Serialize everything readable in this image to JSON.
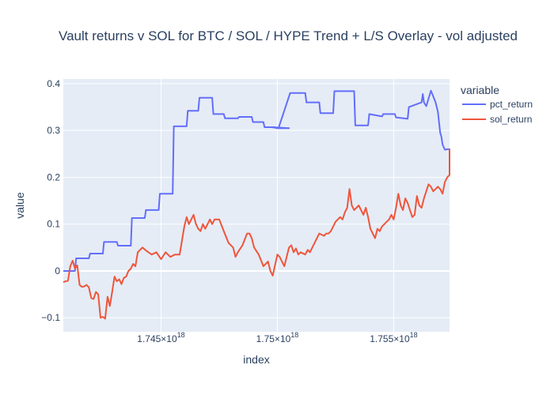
{
  "chart_data": {
    "type": "line",
    "title": "Vault returns v SOL for BTC / SOL / HYPE Trend + L/S Overlay - vol adjusted",
    "xlabel": "index",
    "ylabel": "value",
    "xlim": [
      1.7408e+18,
      1.7574e+18
    ],
    "ylim": [
      -0.13,
      0.41
    ],
    "x_ticks": [
      {
        "value": 1.745e+18,
        "base": "1.745×10",
        "exp": "18"
      },
      {
        "value": 1.75e+18,
        "base": "1.75×10",
        "exp": "18"
      },
      {
        "value": 1.755e+18,
        "base": "1.755×10",
        "exp": "18"
      }
    ],
    "y_ticks": [
      {
        "value": -0.1,
        "label": "−0.1"
      },
      {
        "value": 0,
        "label": "0"
      },
      {
        "value": 0.1,
        "label": "0.1"
      },
      {
        "value": 0.2,
        "label": "0.2"
      },
      {
        "value": 0.3,
        "label": "0.3"
      },
      {
        "value": 0.4,
        "label": "0.4"
      }
    ],
    "grid": true,
    "legend": {
      "title": "variable",
      "placement": "right"
    },
    "series": [
      {
        "name": "pct_return",
        "color": "#636efa",
        "x": [
          1.7408e+18,
          1.7413e+18,
          1.74135e+18,
          1.7419e+18,
          1.74195e+18,
          1.7425e+18,
          1.74255e+18,
          1.7431e+18,
          1.74315e+18,
          1.7437e+18,
          1.74375e+18,
          1.7443e+18,
          1.74435e+18,
          1.7449e+18,
          1.74495e+18,
          1.7455e+18,
          1.74555e+18,
          1.7461e+18,
          1.74615e+18,
          1.7466e+18,
          1.74665e+18,
          1.7472e+18,
          1.74725e+18,
          1.7477e+18,
          1.74775e+18,
          1.7483e+18,
          1.74835e+18,
          1.7489e+18,
          1.74895e+18,
          1.7494e+18,
          1.74945e+18,
          1.7499e+18,
          1.74995e+18,
          1.7505e+18,
          1.74975e+18,
          1.75005e+18,
          1.75055e+18,
          1.75065e+18,
          1.7512e+18,
          1.75125e+18,
          1.7518e+18,
          1.75185e+18,
          1.7524e+18,
          1.75245e+18,
          1.7533e+18,
          1.75335e+18,
          1.7539e+18,
          1.75395e+18,
          1.7545e+18,
          1.75455e+18,
          1.75505e+18,
          1.7551e+18,
          1.7556e+18,
          1.75565e+18,
          1.7562e+18,
          1.75625e+18,
          1.7563e+18,
          1.7564e+18,
          1.7566e+18,
          1.7568e+18,
          1.7569e+18,
          1.757e+18,
          1.75705e+18,
          1.7571e+18,
          1.7572e+18,
          1.7573e+18,
          1.7574e+18,
          1.75745e+18,
          1.7575e+18,
          1.7576e+18,
          1.7577e+18,
          1.75775e+18,
          1.7578e+18,
          1.75785e+18,
          1.7579e+18,
          1.758e+18
        ],
        "y": [
          0.0,
          0.0,
          0.027,
          0.027,
          0.037,
          0.037,
          0.062,
          0.062,
          0.054,
          0.054,
          0.113,
          0.113,
          0.13,
          0.13,
          0.165,
          0.165,
          0.309,
          0.309,
          0.342,
          0.342,
          0.37,
          0.37,
          0.335,
          0.335,
          0.326,
          0.326,
          0.329,
          0.329,
          0.318,
          0.318,
          0.307,
          0.307,
          0.305,
          0.305,
          0.307,
          0.305,
          0.38,
          0.38,
          0.38,
          0.36,
          0.36,
          0.337,
          0.337,
          0.384,
          0.384,
          0.311,
          0.311,
          0.335,
          0.33,
          0.335,
          0.335,
          0.328,
          0.325,
          0.35,
          0.36,
          0.378,
          0.36,
          0.352,
          0.385,
          0.36,
          0.34,
          0.295,
          0.287,
          0.27,
          0.259,
          0.26,
          0.26,
          0.26,
          0.26,
          0.26,
          0.26,
          0.26,
          0.26,
          0.26,
          0.26,
          0.26
        ]
      },
      {
        "name": "sol_return",
        "color": "#ef553b",
        "x": [
          1.7408e+18,
          1.7409e+18,
          1.741e+18,
          1.7411e+18,
          1.7412e+18,
          1.7413e+18,
          1.7414e+18,
          1.7415e+18,
          1.7416e+18,
          1.7417e+18,
          1.7418e+18,
          1.7419e+18,
          1.742e+18,
          1.7421e+18,
          1.7422e+18,
          1.7423e+18,
          1.7424e+18,
          1.7425e+18,
          1.7426e+18,
          1.7427e+18,
          1.7428e+18,
          1.7429e+18,
          1.743e+18,
          1.7431e+18,
          1.7432e+18,
          1.7433e+18,
          1.7434e+18,
          1.7435e+18,
          1.7436e+18,
          1.7437e+18,
          1.7438e+18,
          1.7439e+18,
          1.744e+18,
          1.7442e+18,
          1.7444e+18,
          1.7446e+18,
          1.7448e+18,
          1.745e+18,
          1.7452e+18,
          1.7454e+18,
          1.7456e+18,
          1.7458e+18,
          1.746e+18,
          1.7461e+18,
          1.7462e+18,
          1.7464e+18,
          1.7465e+18,
          1.7466e+18,
          1.7467e+18,
          1.7468e+18,
          1.7469e+18,
          1.747e+18,
          1.7471e+18,
          1.7472e+18,
          1.7473e+18,
          1.7474e+18,
          1.7475e+18,
          1.7477e+18,
          1.7479e+18,
          1.7481e+18,
          1.7482e+18,
          1.7483e+18,
          1.7485e+18,
          1.7487e+18,
          1.7488e+18,
          1.7489e+18,
          1.749e+18,
          1.7492e+18,
          1.7494e+18,
          1.7496e+18,
          1.7497e+18,
          1.7498e+18,
          1.75e+18,
          1.7501e+18,
          1.7502e+18,
          1.7503e+18,
          1.7504e+18,
          1.7505e+18,
          1.7506e+18,
          1.7507e+18,
          1.7508e+18,
          1.7509e+18,
          1.751e+18,
          1.7512e+18,
          1.7513e+18,
          1.7514e+18,
          1.7515e+18,
          1.7516e+18,
          1.7518e+18,
          1.752e+18,
          1.7521e+18,
          1.7522e+18,
          1.7523e+18,
          1.7525e+18,
          1.7527e+18,
          1.7528e+18,
          1.7529e+18,
          1.753e+18,
          1.7531e+18,
          1.7532e+18,
          1.7533e+18,
          1.7535e+18,
          1.7537e+18,
          1.7538e+18,
          1.7539e+18,
          1.754e+18,
          1.7542e+18,
          1.7543e+18,
          1.7544e+18,
          1.7545e+18,
          1.7546e+18,
          1.7547e+18,
          1.7548e+18,
          1.7549e+18,
          1.755e+18,
          1.7551e+18,
          1.7552e+18,
          1.7553e+18,
          1.7554e+18,
          1.7555e+18,
          1.7556e+18,
          1.7557e+18,
          1.7558e+18,
          1.7559e+18,
          1.756e+18,
          1.7561e+18,
          1.7562e+18,
          1.7563e+18,
          1.7564e+18,
          1.7565e+18,
          1.7566e+18,
          1.7567e+18,
          1.7568e+18,
          1.7569e+18,
          1.757e+18,
          1.7571e+18,
          1.7572e+18,
          1.7573e+18,
          1.7574e+18,
          1.7575e+18,
          1.7576e+18,
          1.7577e+18,
          1.7578e+18,
          1.7579e+18,
          1.758e+18
        ],
        "y": [
          -0.024,
          -0.022,
          -0.021,
          0.01,
          0.022,
          0.005,
          0.012,
          -0.03,
          -0.034,
          -0.033,
          -0.03,
          -0.035,
          -0.058,
          -0.06,
          -0.045,
          -0.05,
          -0.1,
          -0.098,
          -0.102,
          -0.055,
          -0.075,
          -0.045,
          -0.012,
          -0.022,
          -0.018,
          -0.028,
          -0.015,
          -0.012,
          0.0,
          0.005,
          0.015,
          0.01,
          0.04,
          0.05,
          0.042,
          0.035,
          0.04,
          0.025,
          0.04,
          0.03,
          0.035,
          0.035,
          0.095,
          0.115,
          0.1,
          0.12,
          0.1,
          0.09,
          0.085,
          0.1,
          0.09,
          0.1,
          0.11,
          0.1,
          0.11,
          0.11,
          0.11,
          0.085,
          0.06,
          0.05,
          0.03,
          0.04,
          0.055,
          0.08,
          0.08,
          0.07,
          0.05,
          0.035,
          0.01,
          0.02,
          0.0,
          -0.01,
          0.035,
          0.03,
          0.02,
          0.01,
          0.03,
          0.05,
          0.055,
          0.04,
          0.048,
          0.035,
          0.04,
          0.035,
          0.045,
          0.04,
          0.05,
          0.06,
          0.08,
          0.075,
          0.08,
          0.08,
          0.085,
          0.105,
          0.115,
          0.11,
          0.125,
          0.135,
          0.175,
          0.14,
          0.13,
          0.14,
          0.12,
          0.135,
          0.115,
          0.09,
          0.07,
          0.09,
          0.085,
          0.095,
          0.1,
          0.105,
          0.11,
          0.12,
          0.11,
          0.135,
          0.165,
          0.14,
          0.13,
          0.155,
          0.145,
          0.13,
          0.115,
          0.12,
          0.16,
          0.14,
          0.135,
          0.155,
          0.17,
          0.185,
          0.18,
          0.17,
          0.175,
          0.18,
          0.175,
          0.165,
          0.19,
          0.2,
          0.205,
          0.23,
          0.24,
          0.23,
          0.26,
          0.24,
          0.235
        ]
      }
    ]
  }
}
